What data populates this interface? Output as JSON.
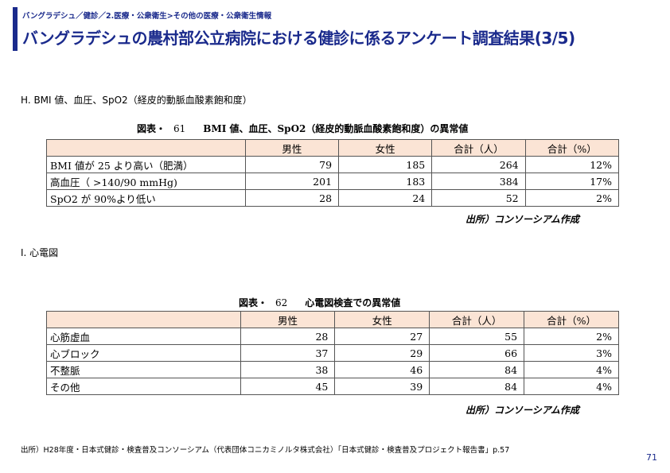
{
  "header": {
    "breadcrumb": "バングラデシュ／健診／2.医療・公衆衛生>その他の医療・公衆衛生情報",
    "title": "バングラデシュの農村部公立病院における健診に係るアンケート調査結果(3/5)"
  },
  "section_h": {
    "heading": "H. BMI 値、血圧、SpO2（経皮的動脈血酸素飽和度）",
    "table_label": "図表・",
    "table_number": "61",
    "table_title": "BMI 値、血圧、SpO2（経皮的動脈血酸素飽和度）の異常値",
    "columns": [
      "",
      "男性",
      "女性",
      "合計（人）",
      "合計（%）"
    ],
    "rows": [
      {
        "label": "BMI 値が 25 より高い（肥満）",
        "male": "79",
        "female": "185",
        "total": "264",
        "percent": "12%"
      },
      {
        "label": "高血圧（ >140/90 mmHg)",
        "male": "201",
        "female": "183",
        "total": "384",
        "percent": "17%"
      },
      {
        "label": "SpO2 が 90%より低い",
        "male": "28",
        "female": "24",
        "total": "52",
        "percent": "2%"
      }
    ],
    "source": "出所）コンソーシアム作成"
  },
  "section_i": {
    "heading": "I. 心電図",
    "table_label": "図表・",
    "table_number": "62",
    "table_title": "心電図検査での異常値",
    "columns": [
      "",
      "男性",
      "女性",
      "合計（人）",
      "合計（%）"
    ],
    "rows": [
      {
        "label": "心筋虚血",
        "male": "28",
        "female": "27",
        "total": "55",
        "percent": "2%"
      },
      {
        "label": "心ブロック",
        "male": "37",
        "female": "29",
        "total": "66",
        "percent": "3%"
      },
      {
        "label": "不整脈",
        "male": "38",
        "female": "46",
        "total": "84",
        "percent": "4%"
      },
      {
        "label": "その他",
        "male": "45",
        "female": "39",
        "total": "84",
        "percent": "4%"
      }
    ],
    "source": "出所）コンソーシアム作成"
  },
  "footer": {
    "source": "出所）H28年度・日本式健診・検査普及コンソーシアム（代表団体コニカミノルタ株式会社）「日本式健診・検査普及プロジェクト報告書」p.57",
    "page_number": "71"
  },
  "colors": {
    "accent": "#1a2a8c",
    "table_header_bg": "#fbe4d5"
  }
}
